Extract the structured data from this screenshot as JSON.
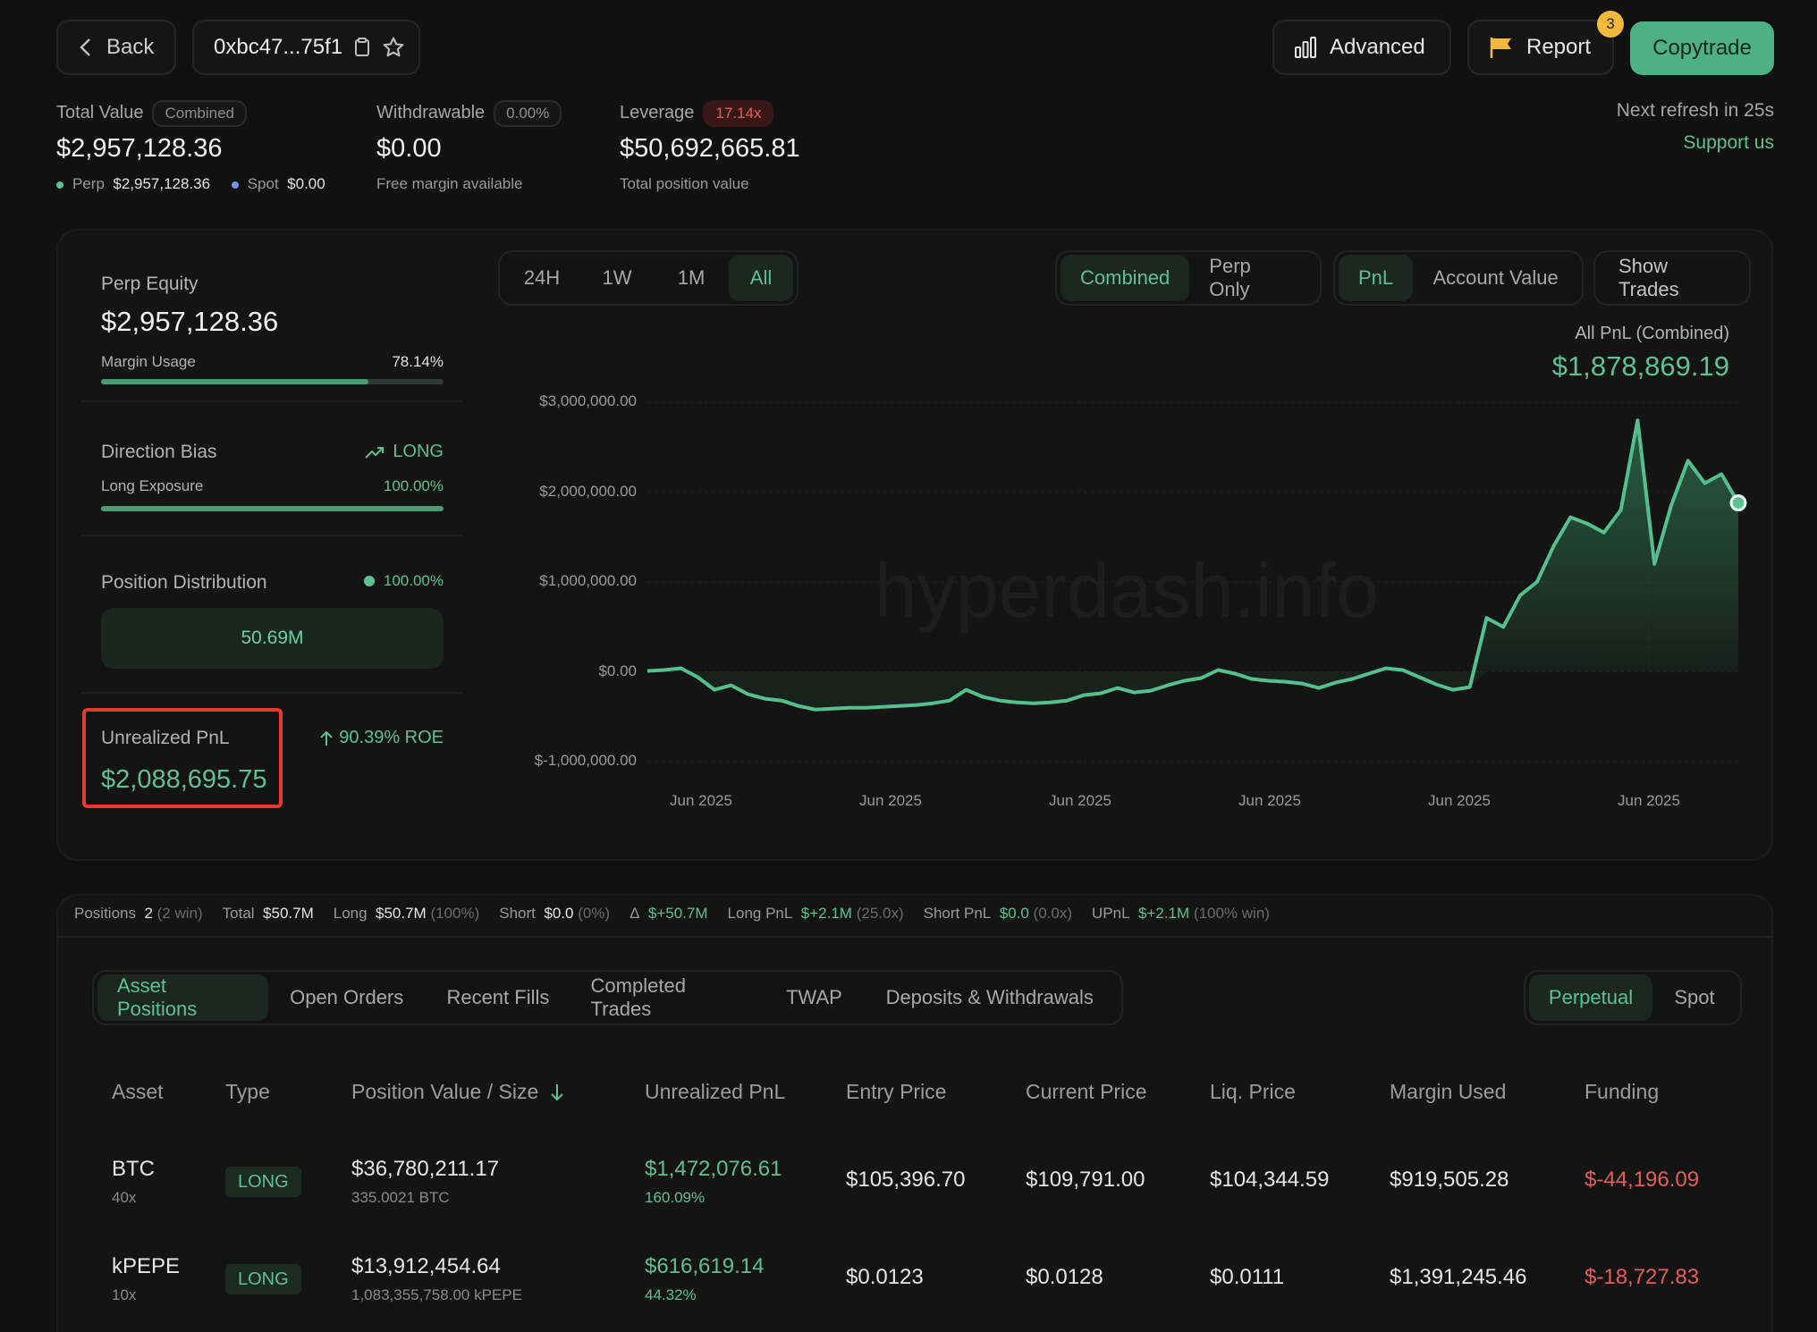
{
  "header": {
    "back_label": "Back",
    "address": "0xbc47...75f1",
    "advanced_label": "Advanced",
    "report_label": "Report",
    "report_badge": "3",
    "copytrade_label": "Copytrade",
    "next_refresh": "Next refresh in 25s",
    "support_label": "Support us"
  },
  "summary": {
    "total_value": {
      "label": "Total Value",
      "tag": "Combined",
      "value": "$2,957,128.36",
      "perp_label": "Perp",
      "perp_value": "$2,957,128.36",
      "spot_label": "Spot",
      "spot_value": "$0.00"
    },
    "withdrawable": {
      "label": "Withdrawable",
      "tag": "0.00%",
      "value": "$0.00",
      "sub": "Free margin available"
    },
    "leverage": {
      "label": "Leverage",
      "tag": "17.14x",
      "value": "$50,692,665.81",
      "sub": "Total position value"
    }
  },
  "left_panel": {
    "perp_equity_label": "Perp Equity",
    "perp_equity_value": "$2,957,128.36",
    "margin_usage_label": "Margin Usage",
    "margin_usage_value": "78.14%",
    "margin_usage_fraction": 0.7814,
    "direction_bias_label": "Direction Bias",
    "direction_bias_value": "LONG",
    "long_exposure_label": "Long Exposure",
    "long_exposure_value": "100.00%",
    "long_exposure_fraction": 1.0,
    "position_distribution_label": "Position Distribution",
    "position_distribution_pct": "100.00%",
    "position_distribution_value": "50.69M",
    "unrealized_pnl_label": "Unrealized PnL",
    "unrealized_pnl_value": "$2,088,695.75",
    "roe": "90.39% ROE"
  },
  "chart_controls": {
    "ranges": [
      "24H",
      "1W",
      "1M",
      "All"
    ],
    "active_range": "All",
    "modes": [
      "Combined",
      "Perp Only"
    ],
    "active_mode": "Combined",
    "metrics": [
      "PnL",
      "Account Value"
    ],
    "active_metric": "PnL",
    "show_trades": "Show Trades"
  },
  "watermark": "hyperdash.info",
  "chart_data": {
    "type": "area",
    "title": "All PnL (Combined)",
    "headline_value": "$1,878,869.19",
    "y_ticks": [
      "$3,000,000.00",
      "$2,000,000.00",
      "$1,000,000.00",
      "$0.00",
      "$-1,000,000.00"
    ],
    "x_ticks": [
      "Jun 2025",
      "Jun 2025",
      "Jun 2025",
      "Jun 2025",
      "Jun 2025",
      "Jun 2025"
    ],
    "ylim": [
      -1000000,
      3000000
    ],
    "grid": true,
    "series": [
      {
        "values": [
          10000,
          20000,
          40000,
          -60000,
          -200000,
          -150000,
          -250000,
          -300000,
          -320000,
          -380000,
          -420000,
          -410000,
          -400000,
          -400000,
          -390000,
          -380000,
          -370000,
          -350000,
          -320000,
          -200000,
          -280000,
          -320000,
          -340000,
          -350000,
          -340000,
          -320000,
          -260000,
          -240000,
          -180000,
          -230000,
          -210000,
          -150000,
          -100000,
          -70000,
          20000,
          -20000,
          -80000,
          -100000,
          -110000,
          -130000,
          -180000,
          -120000,
          -80000,
          -20000,
          40000,
          20000,
          -60000,
          -140000,
          -200000,
          -170000,
          600000,
          500000,
          850000,
          1000000,
          1400000,
          1720000,
          1650000,
          1550000,
          1800000,
          2800000,
          1200000,
          1850000,
          2350000,
          2100000,
          2200000,
          1880000
        ]
      }
    ]
  },
  "stats_bar": {
    "positions_label": "Positions",
    "positions_value": "2",
    "positions_meta": "(2 win)",
    "total_label": "Total",
    "total_value": "$50.7M",
    "long_label": "Long",
    "long_value": "$50.7M",
    "long_meta": "(100%)",
    "short_label": "Short",
    "short_value": "$0.0",
    "short_meta": "(0%)",
    "delta_label": "Δ",
    "delta_value": "$+50.7M",
    "long_pnl_label": "Long PnL",
    "long_pnl_value": "$+2.1M",
    "long_pnl_meta": "(25.0x)",
    "short_pnl_label": "Short PnL",
    "short_pnl_value": "$0.0",
    "short_pnl_meta": "(0.0x)",
    "upnl_label": "UPnL",
    "upnl_value": "$+2.1M",
    "upnl_meta": "(100% win)"
  },
  "tabs": {
    "items": [
      "Asset Positions",
      "Open Orders",
      "Recent Fills",
      "Completed Trades",
      "TWAP",
      "Deposits & Withdrawals"
    ],
    "active": "Asset Positions",
    "market_types": [
      "Perpetual",
      "Spot"
    ],
    "active_market": "Perpetual"
  },
  "table": {
    "columns": [
      "Asset",
      "Type",
      "Position Value / Size",
      "Unrealized PnL",
      "Entry Price",
      "Current Price",
      "Liq. Price",
      "Margin Used",
      "Funding"
    ],
    "rows": [
      {
        "asset": "BTC",
        "leverage": "40x",
        "type": "LONG",
        "value": "$36,780,211.17",
        "size": "335.0021 BTC",
        "pnl": "$1,472,076.61",
        "pnl_pct": "160.09%",
        "entry": "$105,396.70",
        "current": "$109,791.00",
        "liq": "$104,344.59",
        "margin": "$919,505.28",
        "funding": "$-44,196.09"
      },
      {
        "asset": "kPEPE",
        "leverage": "10x",
        "type": "LONG",
        "value": "$13,912,454.64",
        "size": "1,083,355,758.00 kPEPE",
        "pnl": "$616,619.14",
        "pnl_pct": "44.32%",
        "entry": "$0.0123",
        "current": "$0.0128",
        "liq": "$0.0111",
        "margin": "$1,391,245.46",
        "funding": "$-18,727.83"
      }
    ]
  },
  "colors": {
    "accent": "#5fc093",
    "negative": "#e0605c",
    "highlight": "#e83b2f"
  }
}
